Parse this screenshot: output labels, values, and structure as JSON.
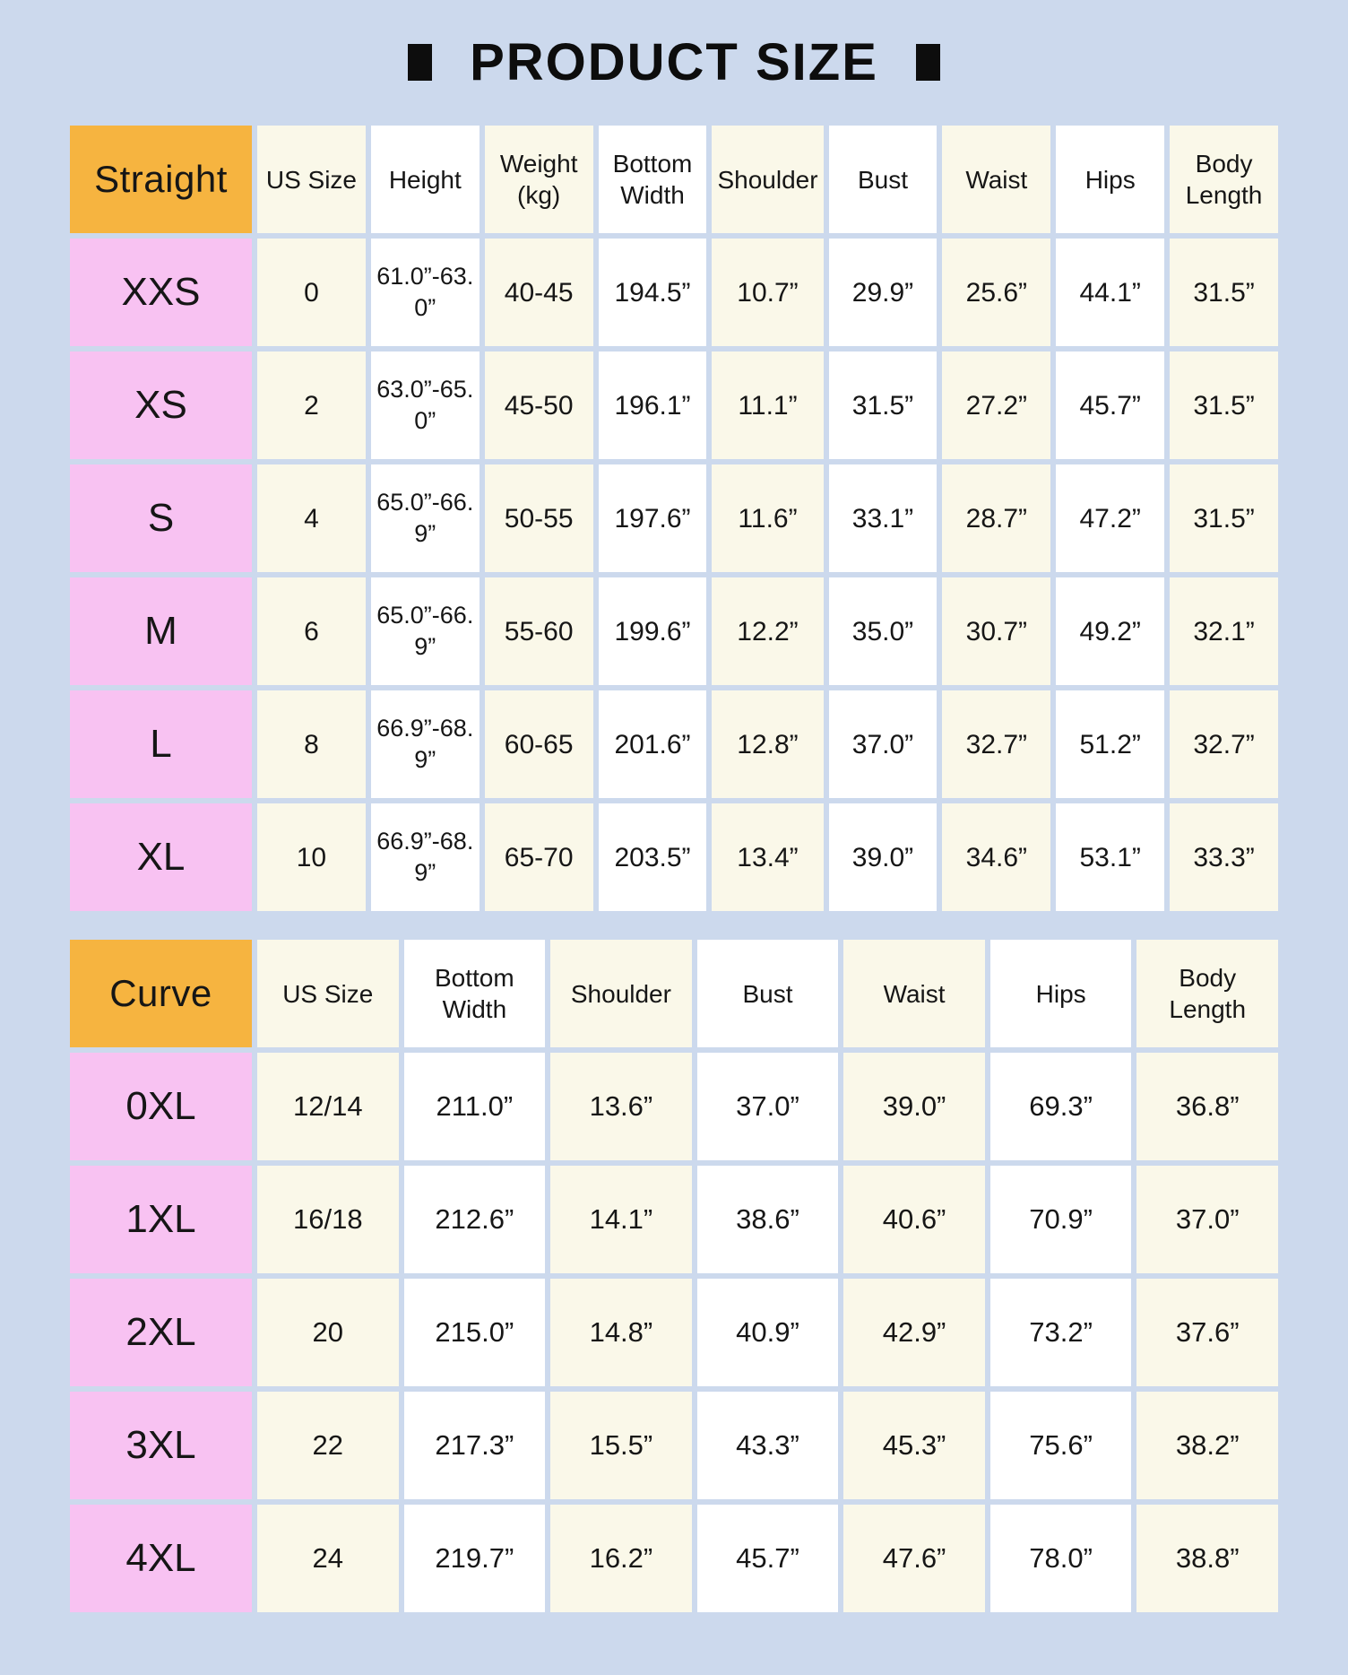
{
  "page": {
    "title": "PRODUCT SIZE",
    "decor_icon": "black-square"
  },
  "colors": {
    "background": "#ccd9ed",
    "table_title_accent": "#f6b440",
    "row_label_pink": "#f8c2f2",
    "cell_cream": "#faf8e9",
    "cell_white": "#ffffff",
    "text": "#161616"
  },
  "tables": [
    {
      "name": "straight",
      "label": "Straight",
      "columns": [
        "US Size",
        "Height",
        "Weight (kg)",
        "Bottom Width",
        "Shoulder",
        "Bust",
        "Waist",
        "Hips",
        "Body Length"
      ],
      "rows": [
        {
          "size": "XXS",
          "values": [
            "0",
            "61.0”-63.0”",
            "40-45",
            "194.5”",
            "10.7”",
            "29.9”",
            "25.6”",
            "44.1”",
            "31.5”"
          ]
        },
        {
          "size": "XS",
          "values": [
            "2",
            "63.0”-65.0”",
            "45-50",
            "196.1”",
            "11.1”",
            "31.5”",
            "27.2”",
            "45.7”",
            "31.5”"
          ]
        },
        {
          "size": "S",
          "values": [
            "4",
            "65.0”-66.9”",
            "50-55",
            "197.6”",
            "11.6”",
            "33.1”",
            "28.7”",
            "47.2”",
            "31.5”"
          ]
        },
        {
          "size": "M",
          "values": [
            "6",
            "65.0”-66.9”",
            "55-60",
            "199.6”",
            "12.2”",
            "35.0”",
            "30.7”",
            "49.2”",
            "32.1”"
          ]
        },
        {
          "size": "L",
          "values": [
            "8",
            "66.9”-68.9”",
            "60-65",
            "201.6”",
            "12.8”",
            "37.0”",
            "32.7”",
            "51.2”",
            "32.7”"
          ]
        },
        {
          "size": "XL",
          "values": [
            "10",
            "66.9”-68.9”",
            "65-70",
            "203.5”",
            "13.4”",
            "39.0”",
            "34.6”",
            "53.1”",
            "33.3”"
          ]
        }
      ]
    },
    {
      "name": "curve",
      "label": "Curve",
      "columns": [
        "US Size",
        "Bottom Width",
        "Shoulder",
        "Bust",
        "Waist",
        "Hips",
        "Body Length"
      ],
      "rows": [
        {
          "size": "0XL",
          "values": [
            "12/14",
            "211.0”",
            "13.6”",
            "37.0”",
            "39.0”",
            "69.3”",
            "36.8”"
          ]
        },
        {
          "size": "1XL",
          "values": [
            "16/18",
            "212.6”",
            "14.1”",
            "38.6”",
            "40.6”",
            "70.9”",
            "37.0”"
          ]
        },
        {
          "size": "2XL",
          "values": [
            "20",
            "215.0”",
            "14.8”",
            "40.9”",
            "42.9”",
            "73.2”",
            "37.6”"
          ]
        },
        {
          "size": "3XL",
          "values": [
            "22",
            "217.3”",
            "15.5”",
            "43.3”",
            "45.3”",
            "75.6”",
            "38.2”"
          ]
        },
        {
          "size": "4XL",
          "values": [
            "24",
            "219.7”",
            "16.2”",
            "45.7”",
            "47.6”",
            "78.0”",
            "38.8”"
          ]
        }
      ]
    }
  ]
}
